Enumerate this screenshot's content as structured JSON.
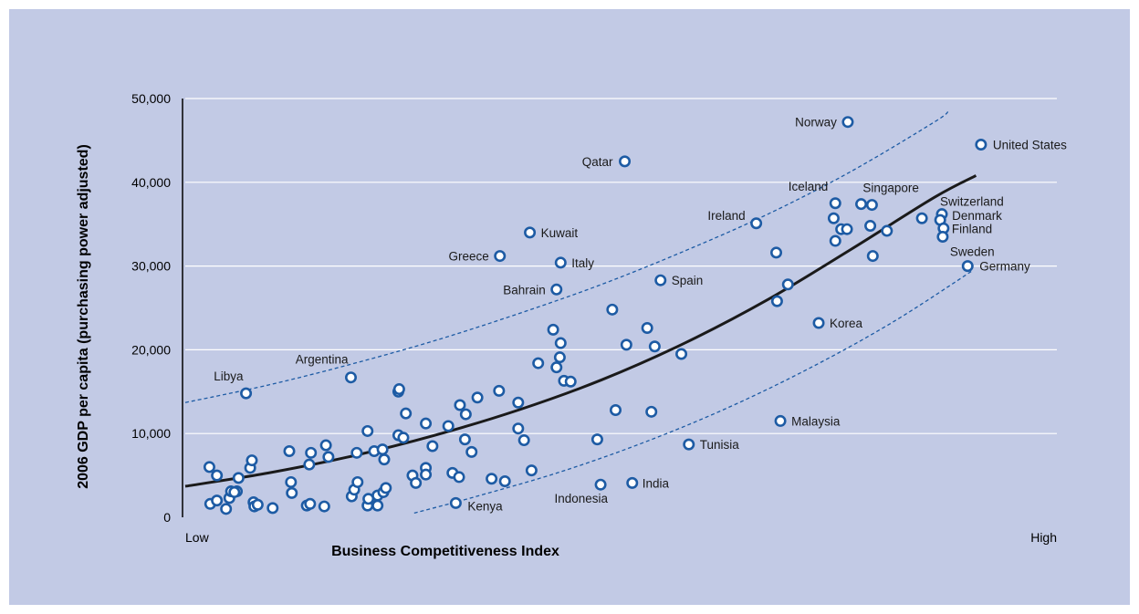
{
  "colors": {
    "background": "#c2cae5",
    "gridline": "#ffffff",
    "marker_fill": "#ffffff",
    "marker_stroke": "#1d5ba4",
    "dashed_band": "#1d5ba4",
    "trend_line": "#1a1a1a"
  },
  "chart_data": {
    "type": "scatter",
    "xlabel": "Business Competitiveness Index",
    "ylabel": "2006 GDP per capita (purchasing power adjusted)",
    "x_tick_labels": [
      "Low",
      "High"
    ],
    "x_scale": "relative index from 0 (Low) to 100 (High)",
    "xlim": [
      0,
      100
    ],
    "ylim": [
      0,
      50000
    ],
    "y_ticks": [
      0,
      10000,
      20000,
      30000,
      40000,
      50000
    ],
    "y_tick_labels": [
      "0",
      "10,000",
      "20,000",
      "30,000",
      "40,000",
      "50,000"
    ],
    "grid": "horizontal",
    "legend": "none",
    "labeled_points": [
      {
        "label": "Norway",
        "x": 79.6,
        "y": 47200
      },
      {
        "label": "United States",
        "x": 95.6,
        "y": 44500
      },
      {
        "label": "Qatar",
        "x": 52.8,
        "y": 42500
      },
      {
        "label": "Iceland",
        "x": 78.1,
        "y": 37500
      },
      {
        "label": "Singapore",
        "x": 82.5,
        "y": 37300
      },
      {
        "label": "Switzerland",
        "x": 90.9,
        "y": 36200
      },
      {
        "label": "Denmark",
        "x": 90.7,
        "y": 35500
      },
      {
        "label": "Ireland",
        "x": 68.6,
        "y": 35100
      },
      {
        "label": "Kuwait",
        "x": 41.4,
        "y": 34000
      },
      {
        "label": "Finland",
        "x": 91.1,
        "y": 34500
      },
      {
        "label": "Sweden",
        "x": 91.0,
        "y": 33500
      },
      {
        "label": "Greece",
        "x": 37.8,
        "y": 31200
      },
      {
        "label": "Italy",
        "x": 45.1,
        "y": 30400
      },
      {
        "label": "Germany",
        "x": 94.0,
        "y": 30000
      },
      {
        "label": "Spain",
        "x": 57.1,
        "y": 28300
      },
      {
        "label": "Bahrain",
        "x": 44.6,
        "y": 27200
      },
      {
        "label": "Korea",
        "x": 76.1,
        "y": 23200
      },
      {
        "label": "Argentina",
        "x": 19.9,
        "y": 16700
      },
      {
        "label": "Libya",
        "x": 7.3,
        "y": 14800
      },
      {
        "label": "Malaysia",
        "x": 71.5,
        "y": 11500
      },
      {
        "label": "Tunisia",
        "x": 60.5,
        "y": 8700
      },
      {
        "label": "India",
        "x": 53.7,
        "y": 4100
      },
      {
        "label": "Indonesia",
        "x": 49.9,
        "y": 3900
      },
      {
        "label": "Kenya",
        "x": 32.5,
        "y": 1700
      }
    ],
    "unlabeled_points": [
      [
        2.9,
        6000
      ],
      [
        3.8,
        5000
      ],
      [
        3.0,
        1600
      ],
      [
        3.8,
        2000
      ],
      [
        4.9,
        1000
      ],
      [
        5.3,
        2300
      ],
      [
        5.5,
        3100
      ],
      [
        6.2,
        3100
      ],
      [
        6.4,
        4700
      ],
      [
        5.9,
        3000
      ],
      [
        7.8,
        5900
      ],
      [
        8.0,
        6800
      ],
      [
        8.2,
        1800
      ],
      [
        8.3,
        1300
      ],
      [
        8.7,
        1500
      ],
      [
        10.5,
        1100
      ],
      [
        12.5,
        7900
      ],
      [
        12.7,
        4200
      ],
      [
        12.8,
        2900
      ],
      [
        14.6,
        1400
      ],
      [
        15.0,
        1600
      ],
      [
        14.9,
        6300
      ],
      [
        15.1,
        7700
      ],
      [
        16.7,
        1300
      ],
      [
        16.9,
        8600
      ],
      [
        17.2,
        7200
      ],
      [
        20.0,
        2500
      ],
      [
        20.3,
        3300
      ],
      [
        20.7,
        4200
      ],
      [
        20.6,
        7700
      ],
      [
        21.9,
        10300
      ],
      [
        21.9,
        1400
      ],
      [
        22.0,
        2200
      ],
      [
        22.7,
        7900
      ],
      [
        23.1,
        2600
      ],
      [
        23.1,
        1400
      ],
      [
        23.7,
        8100
      ],
      [
        23.9,
        6900
      ],
      [
        23.8,
        3000
      ],
      [
        24.1,
        3500
      ],
      [
        25.6,
        15000
      ],
      [
        25.7,
        15300
      ],
      [
        25.6,
        9800
      ],
      [
        26.2,
        9500
      ],
      [
        26.5,
        12400
      ],
      [
        27.3,
        5000
      ],
      [
        27.7,
        4100
      ],
      [
        28.9,
        11200
      ],
      [
        28.9,
        5900
      ],
      [
        28.9,
        5100
      ],
      [
        29.7,
        8500
      ],
      [
        31.6,
        10900
      ],
      [
        32.1,
        5300
      ],
      [
        32.9,
        4800
      ],
      [
        33.0,
        13400
      ],
      [
        33.7,
        12300
      ],
      [
        33.6,
        9300
      ],
      [
        34.4,
        7800
      ],
      [
        35.1,
        14300
      ],
      [
        37.7,
        15100
      ],
      [
        36.8,
        4600
      ],
      [
        38.4,
        4300
      ],
      [
        40.0,
        13700
      ],
      [
        40.0,
        10600
      ],
      [
        40.7,
        9200
      ],
      [
        41.6,
        5600
      ],
      [
        42.4,
        18400
      ],
      [
        44.2,
        22400
      ],
      [
        44.6,
        17900
      ],
      [
        45.1,
        20800
      ],
      [
        45.0,
        19100
      ],
      [
        45.5,
        16300
      ],
      [
        46.3,
        16200
      ],
      [
        49.5,
        9300
      ],
      [
        51.3,
        24800
      ],
      [
        51.7,
        12800
      ],
      [
        53.0,
        20600
      ],
      [
        55.5,
        22600
      ],
      [
        56.0,
        12600
      ],
      [
        56.4,
        20400
      ],
      [
        59.6,
        19500
      ],
      [
        71.0,
        31600
      ],
      [
        71.1,
        25800
      ],
      [
        72.4,
        27800
      ],
      [
        77.9,
        35700
      ],
      [
        78.1,
        33000
      ],
      [
        78.8,
        34400
      ],
      [
        79.5,
        34400
      ],
      [
        81.2,
        37400
      ],
      [
        82.3,
        34800
      ],
      [
        82.6,
        31200
      ],
      [
        84.3,
        34200
      ],
      [
        88.5,
        35700
      ]
    ],
    "trend_line": [
      [
        0,
        3700
      ],
      [
        10,
        5300
      ],
      [
        20,
        7300
      ],
      [
        30,
        9800
      ],
      [
        40,
        12800
      ],
      [
        50,
        16400
      ],
      [
        60,
        20800
      ],
      [
        70,
        26000
      ],
      [
        80,
        32000
      ],
      [
        90,
        38200
      ],
      [
        95,
        40800
      ]
    ],
    "upper_band": [
      [
        0,
        13700
      ],
      [
        10,
        15800
      ],
      [
        20,
        18300
      ],
      [
        30,
        21100
      ],
      [
        40,
        24300
      ],
      [
        50,
        27800
      ],
      [
        60,
        31800
      ],
      [
        70,
        36200
      ],
      [
        80,
        41300
      ],
      [
        90,
        47200
      ],
      [
        91.7,
        48500
      ]
    ],
    "lower_band": [
      [
        27.5,
        500
      ],
      [
        35,
        2500
      ],
      [
        45,
        5400
      ],
      [
        55,
        8900
      ],
      [
        65,
        13000
      ],
      [
        75,
        17800
      ],
      [
        85,
        23300
      ],
      [
        94.5,
        29400
      ]
    ]
  }
}
